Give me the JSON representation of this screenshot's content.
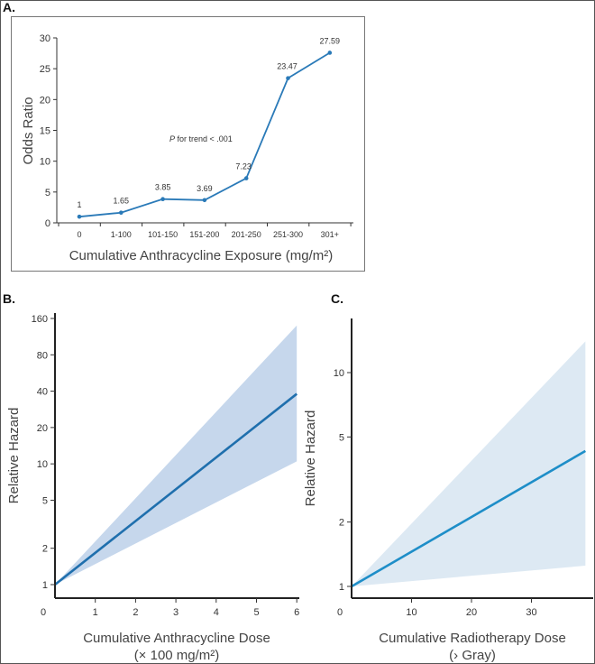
{
  "chart_data": [
    {
      "panel": "A.",
      "type": "line",
      "categories": [
        "0",
        "1-100",
        "101-150",
        "151-200",
        "201-250",
        "251-300",
        "301+"
      ],
      "values": [
        1,
        1.65,
        3.85,
        3.69,
        7.23,
        23.47,
        27.59
      ],
      "data_labels": [
        "1",
        "1.65",
        "3.85",
        "3.69",
        "7.23",
        "23.47",
        "27.59"
      ],
      "xlabel": "Cumulative Anthracycline Exposure (mg/m²)",
      "ylabel": "Odds Ratio",
      "ylim": [
        0,
        30
      ],
      "yticks": [
        0,
        5,
        10,
        15,
        20,
        25,
        30
      ],
      "annotation_italic": "P",
      "annotation": " for trend < .001",
      "color": "#2a7ab8"
    },
    {
      "panel": "B.",
      "type": "line",
      "x": [
        0,
        6
      ],
      "values": [
        1,
        38
      ],
      "band_upper": [
        1,
        140
      ],
      "band_lower": [
        1,
        10.5
      ],
      "xlabel": "Cumulative Anthracycline Dose",
      "xlabel2": "(× 100 mg/m²)",
      "ylabel": "Relative Hazard",
      "yscale": "log",
      "xticks": [
        "0",
        "1",
        "2",
        "3",
        "4",
        "5",
        "6"
      ],
      "yticks": [
        1,
        2,
        5,
        10,
        20,
        40,
        80,
        160
      ],
      "color": "#1f6fad",
      "band_color": "#c6d7ec"
    },
    {
      "panel": "C.",
      "type": "line",
      "x": [
        0,
        39
      ],
      "values": [
        1,
        4.3
      ],
      "band_upper": [
        1,
        14
      ],
      "band_lower": [
        1,
        1.25
      ],
      "xlabel": "Cumulative Radiotherapy Dose",
      "xlabel2": "(›        Gray)",
      "ylabel": "Relative Hazard",
      "yscale": "log",
      "xticks": [
        "0",
        "10",
        "20",
        "30"
      ],
      "yticks": [
        1,
        2,
        5,
        10
      ],
      "color": "#1e8ec8",
      "band_color": "#dde9f3"
    }
  ]
}
